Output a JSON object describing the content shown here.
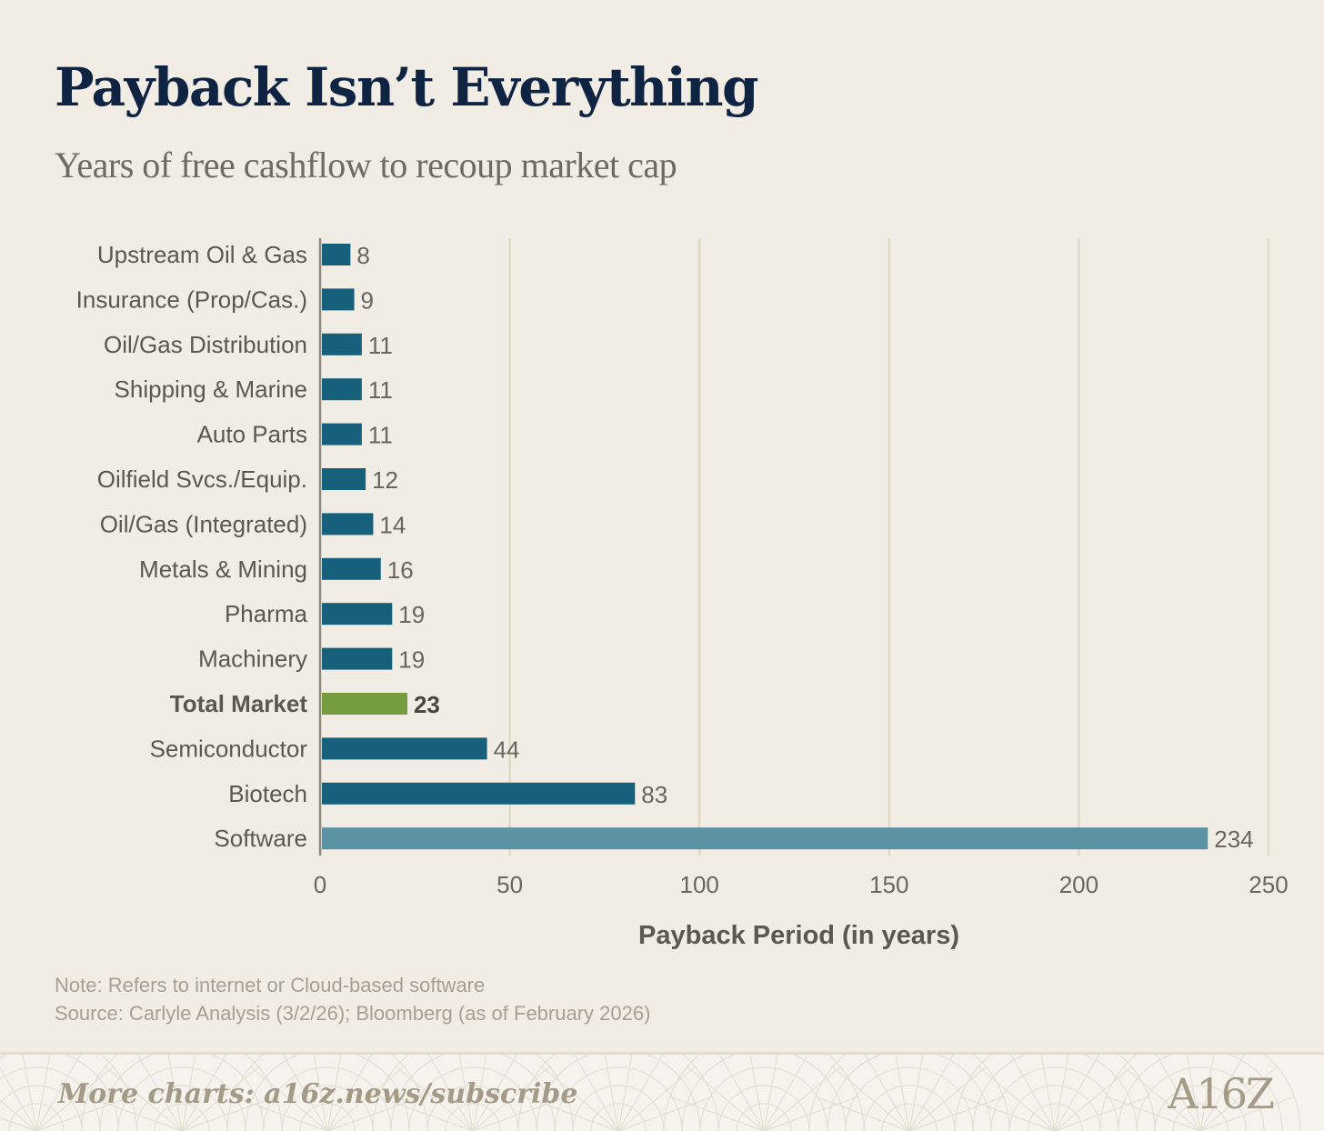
{
  "title": "Payback Isn’t Everything",
  "subtitle": "Years of free cashflow to recoup market cap",
  "colors": {
    "bar": "#16607c",
    "highlight": "#759d3f",
    "software": "#5b93a4",
    "grid": "#e0d9c5",
    "axis": "#8f897e",
    "label": "#5c574f",
    "tick": "#6b665d"
  },
  "chart_data": {
    "type": "bar",
    "orientation": "horizontal",
    "categories": [
      "Upstream Oil & Gas",
      "Insurance (Prop/Cas.)",
      "Oil/Gas Distribution",
      "Shipping & Marine",
      "Auto Parts",
      "Oilfield Svcs./Equip.",
      "Oil/Gas (Integrated)",
      "Metals & Mining",
      "Pharma",
      "Machinery",
      "Total Market",
      "Semiconductor",
      "Biotech",
      "Software"
    ],
    "values": [
      8,
      9,
      11,
      11,
      11,
      12,
      14,
      16,
      19,
      19,
      23,
      44,
      83,
      234
    ],
    "highlight_category": "Total Market",
    "xlabel": "Payback Period (in years)",
    "ylabel": "",
    "xlim": [
      0,
      250
    ],
    "xticks": [
      0,
      50,
      100,
      150,
      200,
      250
    ],
    "grid": true
  },
  "notes": {
    "note": "Note: Refers to internet or Cloud-based software",
    "source": "Source: Carlyle Analysis (3/2/26); Bloomberg (as of February 2026)"
  },
  "footer": {
    "link_text": "More charts: a16z.news/subscribe",
    "logo_text": "A16Z"
  }
}
